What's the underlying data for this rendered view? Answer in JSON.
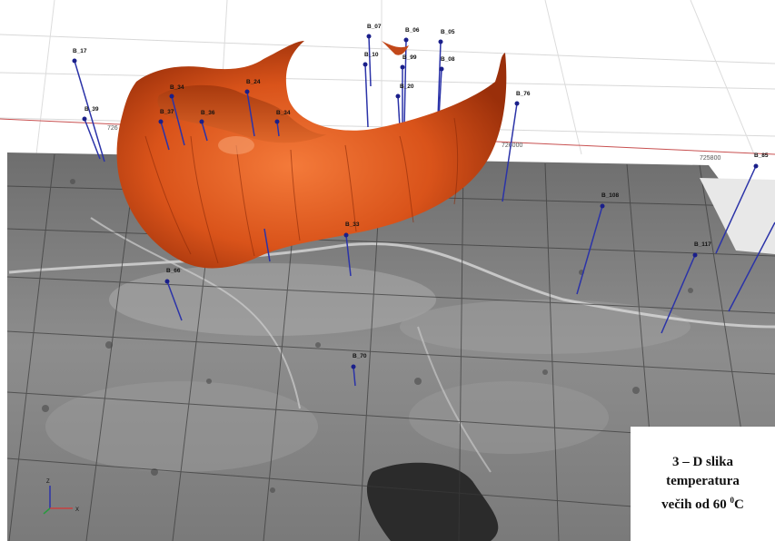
{
  "caption": {
    "line1": "3 – D slika",
    "line2": "temperatura",
    "line3_prefix": "večih od 60 ",
    "line3_sup": "0",
    "line3_suffix": "C"
  },
  "grid_labels": {
    "left": "726",
    "mid": "726000",
    "right": "725800"
  },
  "axes": {
    "z": "Z",
    "x": "X"
  },
  "boreholes": [
    {
      "id": "B_17"
    },
    {
      "id": "B_39"
    },
    {
      "id": "B_34"
    },
    {
      "id": "B_24"
    },
    {
      "id": "B_37"
    },
    {
      "id": "B_36"
    },
    {
      "id": "B_34b",
      "label": "B_34"
    },
    {
      "id": "B_07"
    },
    {
      "id": "B_10"
    },
    {
      "id": "B_06"
    },
    {
      "id": "B_99"
    },
    {
      "id": "B_20"
    },
    {
      "id": "B_05"
    },
    {
      "id": "B_08"
    },
    {
      "id": "B_76"
    },
    {
      "id": "B_33"
    },
    {
      "id": "B_66"
    },
    {
      "id": "B_70"
    },
    {
      "id": "B_108"
    },
    {
      "id": "B_117"
    },
    {
      "id": "B_85"
    }
  ],
  "colors": {
    "surface": "#d9531a",
    "terrain": "#8a8a8a",
    "borehole": "#1a1f8a"
  }
}
